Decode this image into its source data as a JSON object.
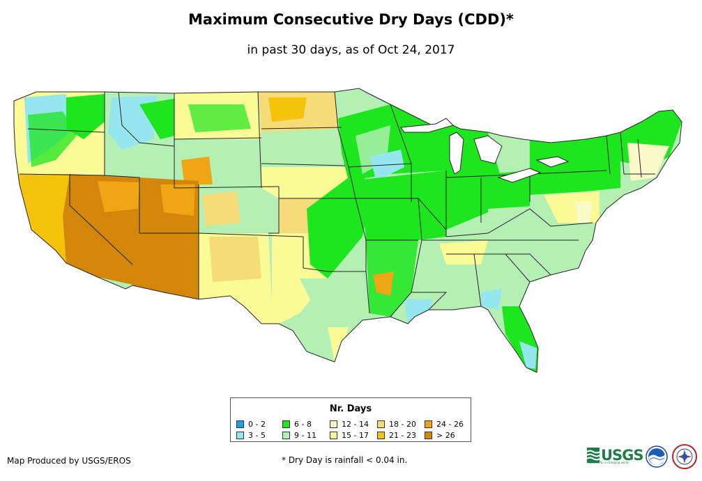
{
  "title": "Maximum Consecutive Dry Days (CDD)*",
  "subtitle": "in past 30 days, as of Oct 24, 2017",
  "legend": {
    "title": "Nr. Days",
    "items": [
      {
        "label": "0 - 2",
        "color": "#1ea0e6"
      },
      {
        "label": "3 - 5",
        "color": "#96e6f0"
      },
      {
        "label": "6 - 8",
        "color": "#1ee61e"
      },
      {
        "label": "9 - 11",
        "color": "#b4f0b4"
      },
      {
        "label": "12 - 14",
        "color": "#fafac8"
      },
      {
        "label": "15 - 17",
        "color": "#fafa96"
      },
      {
        "label": "18 - 20",
        "color": "#f5dc78"
      },
      {
        "label": "21 - 23",
        "color": "#f5c30a"
      },
      {
        "label": "24 - 26",
        "color": "#f0a514"
      },
      {
        "label": "> 26",
        "color": "#d2870a"
      }
    ]
  },
  "footer": {
    "producer": "Map Produced by USGS/EROS",
    "note": "* Dry Day is rainfall < 0.04 in."
  },
  "logos": {
    "usgs": "USGS",
    "usgs_tagline": "science for a changing world"
  }
}
